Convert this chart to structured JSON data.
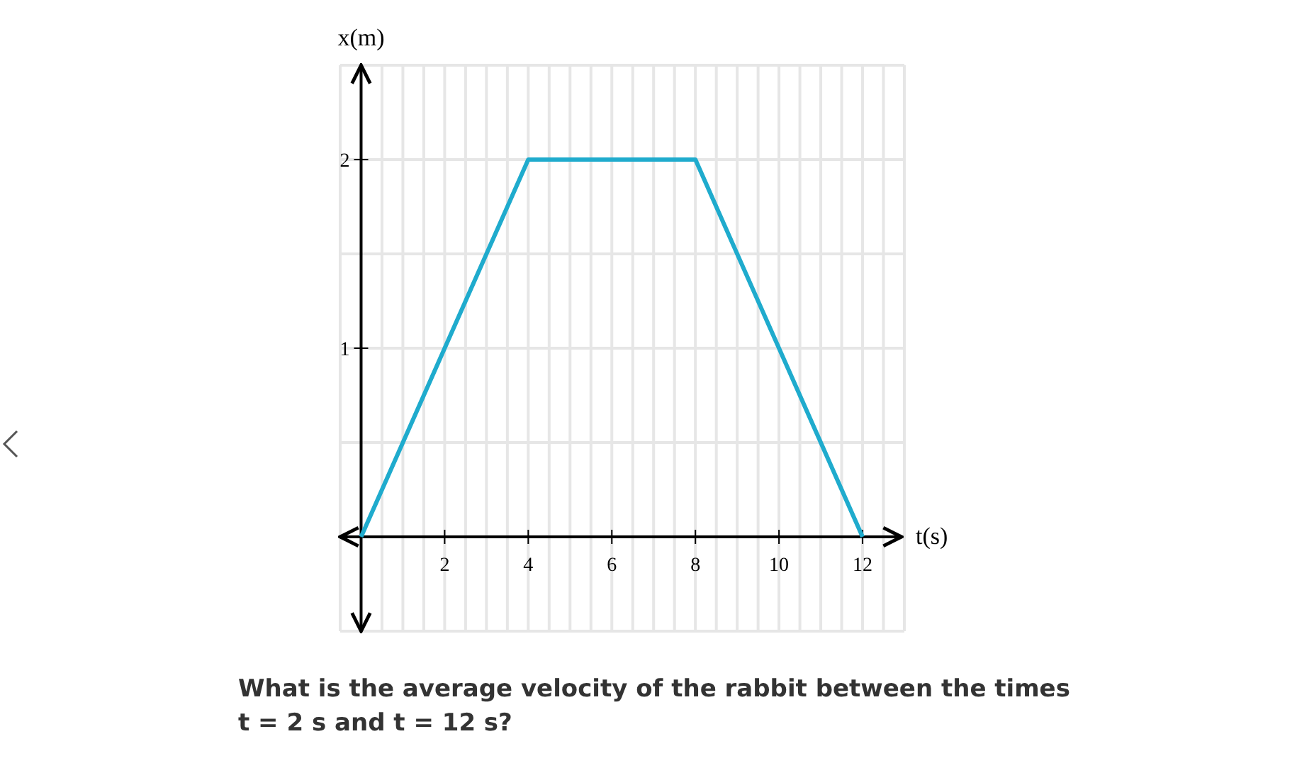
{
  "chart_data": {
    "type": "line",
    "xlabel": "t(s)",
    "ylabel": "x(m)",
    "x": [
      0,
      4,
      8,
      12
    ],
    "series": [
      {
        "color": "#1fabcd",
        "values": [
          0,
          2,
          2,
          0
        ]
      }
    ],
    "xlim": [
      -0.5,
      13
    ],
    "ylim": [
      -0.5,
      2.5
    ],
    "xticks": [
      {
        "value": -0.5,
        "label": null
      },
      {
        "value": 0.5,
        "label": null
      },
      {
        "value": 1,
        "label": null
      },
      {
        "value": 1.5,
        "label": null
      },
      2,
      {
        "value": 2.5,
        "label": null
      },
      {
        "value": 3,
        "label": null
      },
      {
        "value": 3.5,
        "label": null
      },
      4,
      {
        "value": 4.5,
        "label": null
      },
      {
        "value": 5,
        "label": null
      },
      {
        "value": 5.5,
        "label": null
      },
      6,
      {
        "value": 6.5,
        "label": null
      },
      {
        "value": 7,
        "label": null
      },
      {
        "value": 7.5,
        "label": null
      },
      8,
      {
        "value": 8.5,
        "label": null
      },
      {
        "value": 9,
        "label": null
      },
      {
        "value": 9.5,
        "label": null
      },
      10,
      {
        "value": 10.5,
        "label": null
      },
      {
        "value": 11,
        "label": null
      },
      {
        "value": 11.5,
        "label": null
      },
      12,
      {
        "value": 12.5,
        "label": null
      },
      {
        "value": 13,
        "label": null
      }
    ],
    "yticks": [
      {
        "value": -0.5,
        "label": null
      },
      {
        "value": 0.5,
        "label": null
      },
      1,
      {
        "value": 1.5,
        "label": null
      },
      2,
      {
        "value": 2.5,
        "label": null
      }
    ],
    "grid": true,
    "marker": "none",
    "line_style": "solid",
    "annotations": [
      "What is the average velocity of the rabbit between the times t = 2 s and t = 12 s?"
    ]
  }
}
